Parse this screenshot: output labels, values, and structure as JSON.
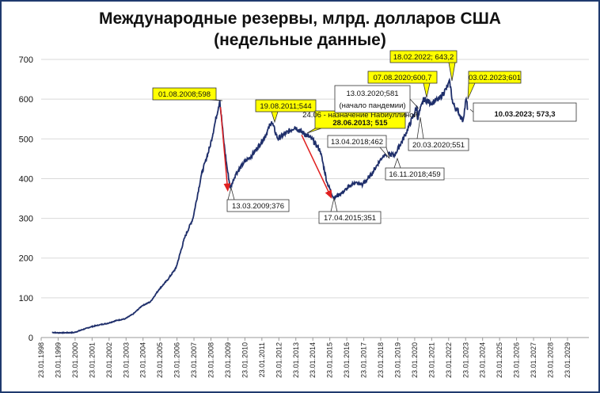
{
  "chart_data": {
    "type": "line",
    "title": "Международные резервы, млрд. долларов США",
    "subtitle": "(недельные данные)",
    "xlabel": "",
    "ylabel": "",
    "ylim": [
      0,
      700
    ],
    "yticks": [
      "0",
      "100",
      "200",
      "300",
      "400",
      "500",
      "600",
      "700"
    ],
    "xticks": [
      "23.01.1998",
      "23.01.1999",
      "23.01.2000",
      "23.01.2001",
      "23.01.2002",
      "23.01.2003",
      "23.01.2004",
      "23.01.2005",
      "23.01.2006",
      "23.01.2007",
      "23.01.2008",
      "23.01.2009",
      "23.01.2010",
      "23.01.2011",
      "23.01.2012",
      "23.01.2013",
      "23.01.2014",
      "23.01.2015",
      "23.01.2016",
      "23.01.2017",
      "23.01.2018",
      "23.01.2019",
      "23.01.2020",
      "23.01.2021",
      "23.01.2022",
      "23.01.2023",
      "23.01.2024",
      "23.01.2025",
      "23.01.2026",
      "23.01.2027",
      "23.01.2028",
      "23.01.2029"
    ],
    "grid": true,
    "line_color": "#1f2f6b",
    "arrow_color": "#e02020",
    "highlight_color": "#ffff00",
    "series": [
      {
        "x": [
          1998.7,
          1999.0,
          1999.5,
          2000.0,
          2000.5,
          2001.0,
          2001.5,
          2002.0,
          2002.5,
          2003.0,
          2003.5,
          2004.0,
          2004.5,
          2005.0,
          2005.5,
          2006.0,
          2006.5,
          2007.0,
          2007.5,
          2008.0,
          2008.3,
          2008.58,
          2008.8,
          2009.0,
          2009.2,
          2009.5,
          2010.0,
          2010.5,
          2011.0,
          2011.3,
          2011.63,
          2012.0,
          2012.5,
          2013.0,
          2013.49,
          2014.0,
          2014.5,
          2014.9,
          2015.29,
          2015.8,
          2016.5,
          2017.0,
          2017.5,
          2018.0,
          2018.28,
          2018.88,
          2019.5,
          2020.0,
          2020.2,
          2020.22,
          2020.6,
          2021.0,
          2021.5,
          2021.9,
          2022.13,
          2022.3,
          2022.6,
          2022.9,
          2023.09,
          2023.19
        ],
        "y": [
          13,
          12,
          12,
          12.5,
          20,
          27,
          32,
          36,
          43,
          47,
          60,
          80,
          90,
          121,
          145,
          175,
          250,
          300,
          410,
          480,
          540,
          598,
          500,
          430,
          376,
          410,
          440,
          460,
          490,
          510,
          544,
          500,
          515,
          530,
          515,
          500,
          470,
          390,
          351,
          365,
          390,
          385,
          410,
          445,
          462,
          459,
          510,
          560,
          581,
          551,
          600.7,
          590,
          600,
          625,
          643.2,
          590,
          570,
          545,
          601,
          573.3
        ]
      }
    ],
    "annotations": [
      {
        "id": "a2008",
        "text": "01.08.2008;598",
        "style": "yellow"
      },
      {
        "id": "a2011",
        "text": "19.08.2011;544",
        "style": "yellow"
      },
      {
        "id": "a2013",
        "line1": "24.06 - назначение Набиуллиной",
        "line2": "28.06.2013; 515",
        "style": "yellow"
      },
      {
        "id": "a2009",
        "text": "13.03.2009;376",
        "style": "white"
      },
      {
        "id": "a2015",
        "text": "17.04.2015;351",
        "style": "white"
      },
      {
        "id": "a2018a",
        "text": "13.04.2018;462",
        "style": "white"
      },
      {
        "id": "a2018b",
        "text": "16.11.2018;459",
        "style": "white"
      },
      {
        "id": "a2020a",
        "line1": "13.03.2020;581",
        "line2": "(начало пандемии)",
        "style": "white"
      },
      {
        "id": "a2020b",
        "text": "20.03.2020;551",
        "style": "white"
      },
      {
        "id": "a2020c",
        "text": "07.08.2020;600,7",
        "style": "yellow"
      },
      {
        "id": "a2022",
        "text": "18.02.2022; 643,2",
        "style": "yellow"
      },
      {
        "id": "a2023a",
        "text": "03.02.2023;601",
        "style": "yellow"
      },
      {
        "id": "a2023b",
        "text": "10.03.2023; 573,3",
        "style": "white-large"
      }
    ]
  }
}
